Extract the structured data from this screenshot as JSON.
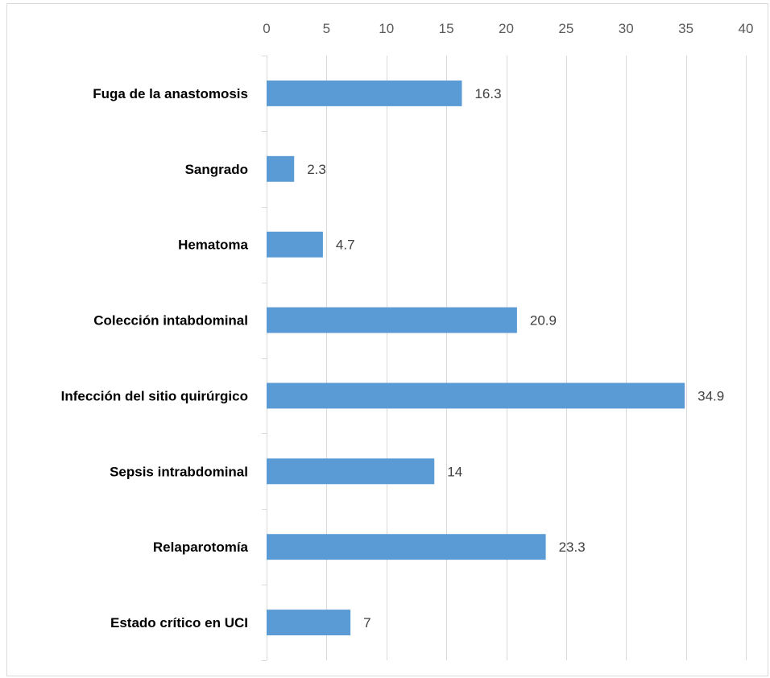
{
  "chart_data": {
    "type": "bar",
    "orientation": "horizontal",
    "title": "",
    "xlabel": "",
    "ylabel": "",
    "categories": [
      "Fuga de la anastomosis",
      "Sangrado",
      "Hematoma",
      "Colección intabdominal",
      "Infección del sitio quirúrgico",
      "Sepsis intrabdominal",
      "Relaparotomía",
      "Estado crítico en UCI"
    ],
    "values": [
      16.3,
      2.3,
      4.7,
      20.9,
      34.9,
      14,
      23.3,
      7
    ],
    "data_labels": [
      "16.3",
      "2.3",
      "4.7",
      "20.9",
      "34.9",
      "14",
      "23.3",
      "7"
    ],
    "xlim": [
      0,
      40
    ],
    "x_ticks": [
      0,
      5,
      10,
      15,
      20,
      25,
      30,
      35,
      40
    ],
    "x_tick_labels": [
      "0",
      "5",
      "10",
      "15",
      "20",
      "25",
      "30",
      "35",
      "40"
    ],
    "x_axis_position": "top",
    "grid": true,
    "legend": "none",
    "colors": {
      "bar": "#5b9bd5",
      "grid": "#d9d9d9",
      "tick_text": "#595959",
      "data_label_text": "#404040",
      "category_text": "#000000"
    }
  }
}
